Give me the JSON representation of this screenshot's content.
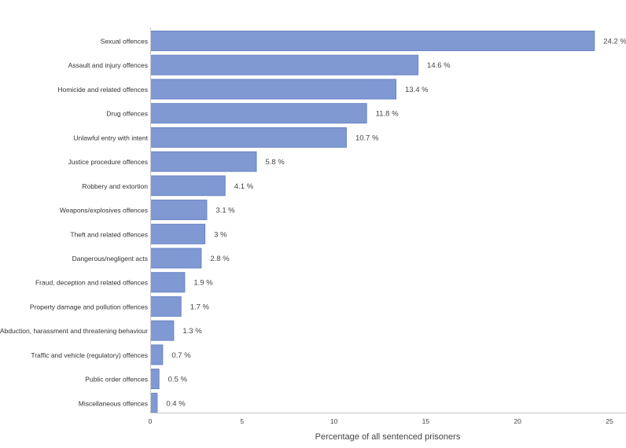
{
  "chart_data": {
    "type": "bar",
    "orientation": "horizontal",
    "categories": [
      "Sexual offences",
      "Assault and injury offences",
      "Homicide and related offences",
      "Drug offences",
      "Unlawful entry with intent",
      "Justice procedure offences",
      "Robbery and extortion",
      "Weapons/explosives offences",
      "Theft and related offences",
      "Dangerous/negligent acts",
      "Fraud, deception and related offences",
      "Property damage and pollution offences",
      "Abduction, harassment and threatening behaviour",
      "Traffic and vehicle (regulatory) offences",
      "Public order offences",
      "Miscellaneous offences"
    ],
    "values": [
      24.2,
      14.6,
      13.4,
      11.8,
      10.7,
      5.8,
      4.1,
      3.1,
      3,
      2.8,
      1.9,
      1.7,
      1.3,
      0.7,
      0.5,
      0.4
    ],
    "data_label_suffix": " %",
    "title": "",
    "xlabel": "Percentage of all sentenced prisoners",
    "ylabel": "",
    "xlim": [
      0,
      25
    ],
    "xticks": [
      0,
      5,
      10,
      15,
      20,
      25
    ],
    "grid": false,
    "legend": "none",
    "colors": {
      "bar_fill": "#8099d2",
      "bar_stroke": "#6a84c6",
      "axis": "#c8c8c8",
      "text": "#333333"
    }
  }
}
